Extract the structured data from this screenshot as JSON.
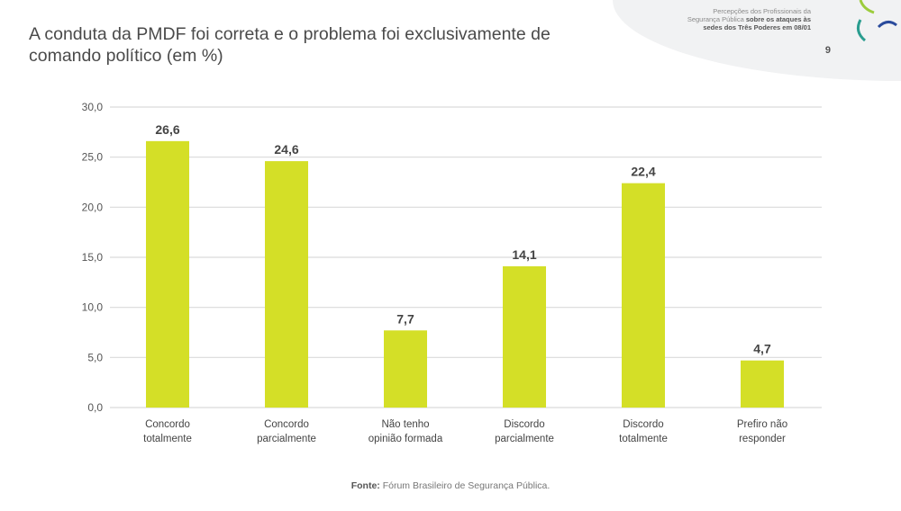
{
  "header": {
    "line1": "Percepções dos Profissionais da",
    "line2a": "Segurança Pública",
    "line2b": "sobre os ataques às",
    "line3": "sedes dos Três Poderes em 08/01",
    "page": "9"
  },
  "source": {
    "label": "Fonte:",
    "text": "Fórum Brasileiro de Segurança Pública."
  },
  "colors": {
    "bar": "#d4df27",
    "grid": "#d9d9d9"
  },
  "chart_data": {
    "type": "bar",
    "title": "A conduta da PMDF foi correta e o problema foi exclusivamente de comando político (em %)",
    "categories": [
      [
        "Concordo",
        "totalmente"
      ],
      [
        "Concordo",
        "parcialmente"
      ],
      [
        "Não tenho",
        "opinião formada"
      ],
      [
        "Discordo",
        "parcialmente"
      ],
      [
        "Discordo",
        "totalmente"
      ],
      [
        "Prefiro não",
        "responder"
      ]
    ],
    "values": [
      26.6,
      24.6,
      7.7,
      14.1,
      22.4,
      4.7
    ],
    "value_labels": [
      "26,6",
      "24,6",
      "7,7",
      "14,1",
      "22,4",
      "4,7"
    ],
    "yticks": [
      "0,0",
      "5,0",
      "10,0",
      "15,0",
      "20,0",
      "25,0",
      "30,0"
    ],
    "ylim": [
      0,
      30
    ],
    "grid": true,
    "xlabel": "",
    "ylabel": ""
  }
}
